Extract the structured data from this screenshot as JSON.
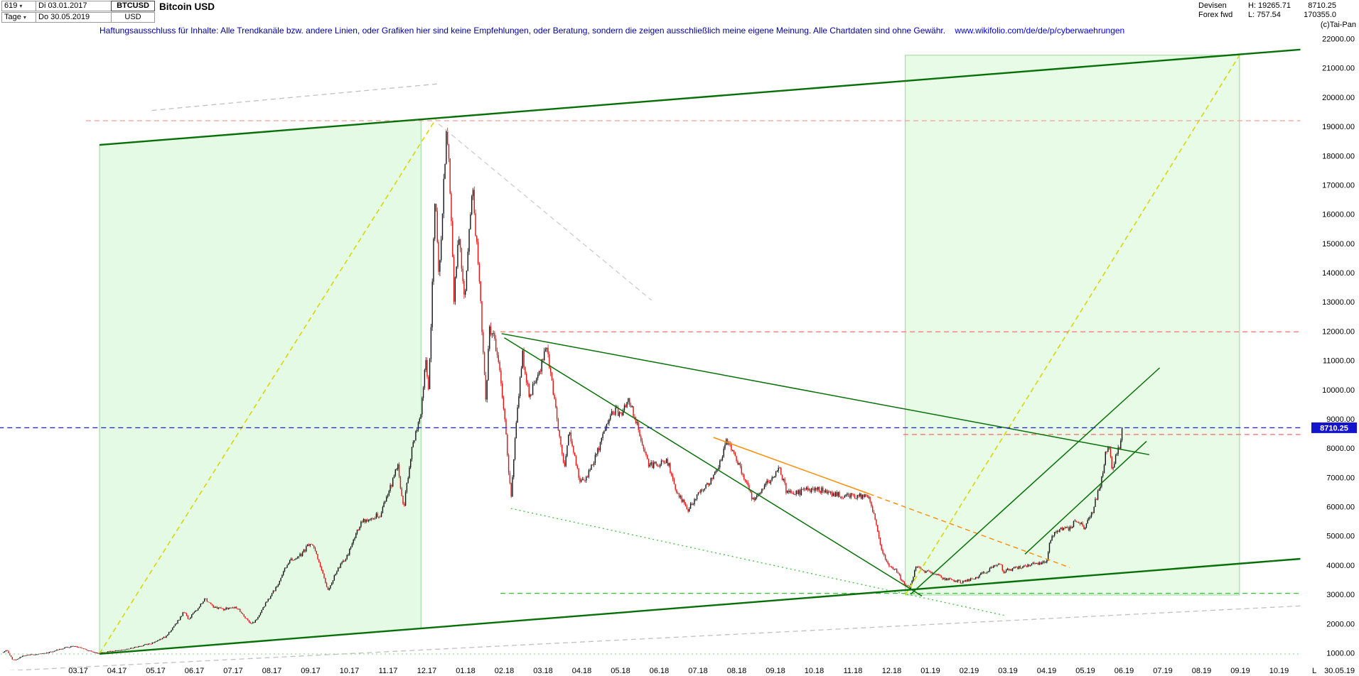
{
  "header": {
    "left": {
      "chart_number": "619",
      "date_from": "Di 03.01.2017",
      "symbol": "BTCUSD",
      "period": "Tage",
      "date_to": "Do 30.05.2019",
      "currency": "USD",
      "title": "Bitcoin USD"
    },
    "right": {
      "market_line1": "Devisen",
      "high": "H: 19265.71",
      "last": "8710.25",
      "market_line2": "Forex fwd",
      "low": "L: 757.54",
      "volume": "170355.0",
      "copyright": "(c)Tai-Pan"
    }
  },
  "disclaimer": {
    "text": "Haftungsausschluss für Inhalte: Alle Trendkanäle bzw. andere Linien, oder Grafiken hier sind keine Empfehlungen, oder Beratung, sondern die zeigen ausschließlich meine eigene Meinung. Alle Chartdaten sind ohne Gewähr.",
    "url": "www.wikifolio.com/de/de/p/cyberwaehrungen"
  },
  "colors": {
    "current_price_bg": "#1414cc",
    "candle_up": "#161616",
    "candle_down": "#e01212",
    "channel_green": "#067006",
    "warning_yellow": "#d8d800",
    "resistance_red": "#ff6666",
    "orange_trend": "#ff8c00"
  },
  "axis": {
    "price_ticks": [
      "22000.00",
      "21000.00",
      "20000.00",
      "19000.00",
      "18000.00",
      "17000.00",
      "16000.00",
      "15000.00",
      "14000.00",
      "13000.00",
      "12000.00",
      "11000.00",
      "10000.00",
      "9000.00",
      "8000.00",
      "7000.00",
      "6000.00",
      "5000.00",
      "4000.00",
      "3000.00",
      "2000.00",
      "1000.00"
    ],
    "date_labels": [
      "03.17",
      "04.17",
      "05.17",
      "06.17",
      "07.17",
      "08.17",
      "09.17",
      "10.17",
      "11.17",
      "12.17",
      "01.18",
      "02.18",
      "03.18",
      "04.18",
      "05.18",
      "06.18",
      "07.18",
      "08.18",
      "09.18",
      "10.18",
      "11.18",
      "12.18",
      "01.19",
      "02.19",
      "03.19",
      "04.19",
      "05.19",
      "06.19",
      "07.19",
      "08.19",
      "09.19",
      "10.19"
    ],
    "last_marker": "L",
    "last_date": "30.05.19",
    "current_price": "8710.25"
  },
  "chart_data": {
    "type": "candlestick",
    "title": "Bitcoin USD",
    "period": "daily (Tage)",
    "xlabel": "",
    "ylabel": "",
    "x_months_origin_label": "03.17",
    "x_range_months": [
      -2.05,
      31.55
    ],
    "ylim": [
      500,
      22400
    ],
    "y_tick_step": 1000,
    "last_close": 8710.25,
    "period_high": 19265.71,
    "period_low": 757.54,
    "colors": {
      "up": "#161616",
      "down": "#e01212"
    },
    "price_anchors": [
      [
        -1.93,
        1020
      ],
      [
        -1.85,
        1125
      ],
      [
        -1.7,
        800
      ],
      [
        -1.62,
        762
      ],
      [
        -1.45,
        905
      ],
      [
        -1.15,
        965
      ],
      [
        -0.8,
        1010
      ],
      [
        -0.38,
        1175
      ],
      [
        -0.1,
        1255
      ],
      [
        0.12,
        1150
      ],
      [
        0.5,
        1000
      ],
      [
        0.8,
        1060
      ],
      [
        1.05,
        1090
      ],
      [
        1.5,
        1215
      ],
      [
        1.9,
        1345
      ],
      [
        2.25,
        1560
      ],
      [
        2.55,
        2060
      ],
      [
        2.73,
        2420
      ],
      [
        2.85,
        2170
      ],
      [
        3.05,
        2480
      ],
      [
        3.28,
        2870
      ],
      [
        3.5,
        2560
      ],
      [
        3.75,
        2510
      ],
      [
        4.1,
        2570
      ],
      [
        4.45,
        1990
      ],
      [
        4.58,
        2120
      ],
      [
        4.85,
        2740
      ],
      [
        5.1,
        3240
      ],
      [
        5.45,
        4160
      ],
      [
        5.75,
        4370
      ],
      [
        6.0,
        4790
      ],
      [
        6.2,
        4230
      ],
      [
        6.45,
        3170
      ],
      [
        6.7,
        3870
      ],
      [
        6.95,
        4350
      ],
      [
        7.3,
        5470
      ],
      [
        7.55,
        5630
      ],
      [
        7.8,
        5750
      ],
      [
        8.0,
        6450
      ],
      [
        8.25,
        7430
      ],
      [
        8.4,
        5920
      ],
      [
        8.62,
        8080
      ],
      [
        8.85,
        9300
      ],
      [
        8.97,
        11150
      ],
      [
        9.05,
        9950
      ],
      [
        9.22,
        16900
      ],
      [
        9.32,
        13800
      ],
      [
        9.42,
        16700
      ],
      [
        9.52,
        19150
      ],
      [
        9.63,
        15800
      ],
      [
        9.7,
        13100
      ],
      [
        9.82,
        15300
      ],
      [
        9.95,
        13300
      ],
      [
        10.0,
        13600
      ],
      [
        10.18,
        16900
      ],
      [
        10.35,
        13800
      ],
      [
        10.53,
        9600
      ],
      [
        10.62,
        12250
      ],
      [
        10.85,
        11100
      ],
      [
        11.0,
        9150
      ],
      [
        11.17,
        6300
      ],
      [
        11.35,
        9600
      ],
      [
        11.47,
        11200
      ],
      [
        11.65,
        9800
      ],
      [
        11.83,
        10350
      ],
      [
        12.1,
        11480
      ],
      [
        12.35,
        9100
      ],
      [
        12.55,
        7350
      ],
      [
        12.68,
        8650
      ],
      [
        12.95,
        6850
      ],
      [
        13.15,
        7080
      ],
      [
        13.45,
        8050
      ],
      [
        13.8,
        9300
      ],
      [
        14.05,
        9220
      ],
      [
        14.2,
        9750
      ],
      [
        14.5,
        8460
      ],
      [
        14.75,
        7400
      ],
      [
        14.97,
        7480
      ],
      [
        15.2,
        7620
      ],
      [
        15.45,
        6480
      ],
      [
        15.75,
        5900
      ],
      [
        15.97,
        6380
      ],
      [
        16.2,
        6660
      ],
      [
        16.55,
        7400
      ],
      [
        16.72,
        8280
      ],
      [
        16.95,
        7760
      ],
      [
        17.2,
        7030
      ],
      [
        17.42,
        6220
      ],
      [
        17.58,
        6480
      ],
      [
        17.85,
        6920
      ],
      [
        18.1,
        7320
      ],
      [
        18.3,
        6460
      ],
      [
        18.6,
        6490
      ],
      [
        18.9,
        6610
      ],
      [
        19.2,
        6580
      ],
      [
        19.5,
        6430
      ],
      [
        19.8,
        6390
      ],
      [
        20.1,
        6380
      ],
      [
        20.42,
        6370
      ],
      [
        20.58,
        5550
      ],
      [
        20.75,
        4460
      ],
      [
        20.92,
        4020
      ],
      [
        21.12,
        3850
      ],
      [
        21.32,
        3350
      ],
      [
        21.47,
        3230
      ],
      [
        21.63,
        3990
      ],
      [
        21.82,
        3800
      ],
      [
        22.02,
        3770
      ],
      [
        22.28,
        3590
      ],
      [
        22.62,
        3470
      ],
      [
        22.92,
        3445
      ],
      [
        23.22,
        3620
      ],
      [
        23.55,
        3890
      ],
      [
        23.77,
        4130
      ],
      [
        23.88,
        3810
      ],
      [
        24.12,
        3890
      ],
      [
        24.47,
        3995
      ],
      [
        24.82,
        4085
      ],
      [
        24.99,
        4120
      ],
      [
        25.1,
        4880
      ],
      [
        25.3,
        5230
      ],
      [
        25.57,
        5290
      ],
      [
        25.77,
        5520
      ],
      [
        25.97,
        5300
      ],
      [
        26.17,
        5770
      ],
      [
        26.42,
        6950
      ],
      [
        26.53,
        7920
      ],
      [
        26.62,
        8030
      ],
      [
        26.7,
        7270
      ],
      [
        26.8,
        7910
      ],
      [
        26.89,
        8080
      ],
      [
        26.97,
        8710.25
      ]
    ],
    "overlays": {
      "boxes": [
        {
          "name": "channel-2017-zone",
          "fill": "rgba(170,240,170,0.30)",
          "stroke": "rgba(60,180,60,0.50)",
          "points": [
            [
              0.55,
              18380
            ],
            [
              8.85,
              19250
            ],
            [
              8.85,
              1850
            ],
            [
              0.55,
              980
            ]
          ]
        },
        {
          "name": "channel-2019-zone",
          "fill": "rgba(170,240,170,0.28)",
          "stroke": "rgba(60,180,60,0.50)",
          "points": [
            [
              21.35,
              21450
            ],
            [
              29.98,
              21450
            ],
            [
              29.98,
              2990
            ],
            [
              21.35,
              2990
            ]
          ]
        }
      ],
      "lines": [
        {
          "name": "old-trend-gray-top",
          "color": "#c0c0c0",
          "width": 1.3,
          "dash": "dash",
          "from": [
            1.9,
            19560
          ],
          "to": [
            9.3,
            20470
          ]
        },
        {
          "name": "old-trend-gray-bottom",
          "color": "#c0c0c0",
          "width": 1.3,
          "dash": "dash",
          "from": [
            -2.0,
            390
          ],
          "to": [
            31.55,
            2620
          ]
        },
        {
          "name": "old-trend-gray-peak",
          "color": "#cccccc",
          "width": 1.3,
          "dash": "dash",
          "from": [
            9.3,
            19100
          ],
          "to": [
            14.8,
            13070
          ]
        },
        {
          "name": "support-dotted-descending",
          "color": "#3fbf3f",
          "width": 1.3,
          "dash": "dot",
          "from": [
            11.17,
            5950
          ],
          "to": [
            23.9,
            2300
          ]
        },
        {
          "name": "support-3050",
          "color": "#3fbf3f",
          "width": 1.3,
          "dash": "dash",
          "from": [
            10.9,
            3050
          ],
          "to": [
            31.55,
            3050
          ]
        },
        {
          "name": "support-975",
          "color": "#7fd47f",
          "width": 1,
          "dash": "dot",
          "from": [
            -2.0,
            975
          ],
          "to": [
            31.55,
            975
          ]
        },
        {
          "name": "rally-2017-trend",
          "color": "#d8d800",
          "width": 1.6,
          "dash": "dash",
          "from": [
            0.55,
            990
          ],
          "to": [
            9.24,
            19280
          ]
        },
        {
          "name": "rally-2019-trend",
          "color": "#d8d800",
          "width": 1.6,
          "dash": "dash",
          "from": [
            21.35,
            2995
          ],
          "to": [
            29.98,
            21450
          ]
        },
        {
          "name": "resistance-19200",
          "color": "#ff9999",
          "width": 1.2,
          "dash": "dash",
          "from": [
            0.2,
            19208
          ],
          "to": [
            31.55,
            19208
          ]
        },
        {
          "name": "resistance-12000",
          "color": "#ff6666",
          "width": 1.2,
          "dash": "dash",
          "from": [
            10.9,
            11990
          ],
          "to": [
            31.55,
            11990
          ]
        },
        {
          "name": "resistance-8480",
          "color": "#ff6666",
          "width": 1.2,
          "dash": "dash",
          "from": [
            21.3,
            8480
          ],
          "to": [
            31.55,
            8480
          ]
        },
        {
          "name": "downtrend-orange",
          "color": "#ff8c00",
          "width": 1.5,
          "dash": "solid",
          "from": [
            16.4,
            8380
          ],
          "to": [
            20.42,
            6450
          ]
        },
        {
          "name": "downtrend-orange-extension",
          "color": "#ff8c00",
          "width": 1.4,
          "dash": "dash",
          "from": [
            20.42,
            6450
          ],
          "to": [
            25.6,
            3930
          ]
        },
        {
          "name": "channel-top",
          "color": "#067006",
          "width": 2.4,
          "dash": "solid",
          "from": [
            0.55,
            18380
          ],
          "to": [
            31.55,
            21640
          ]
        },
        {
          "name": "channel-bottom",
          "color": "#067006",
          "width": 2.4,
          "dash": "solid",
          "from": [
            0.55,
            980
          ],
          "to": [
            31.55,
            4230
          ]
        },
        {
          "name": "downtrend-major",
          "color": "#067006",
          "width": 1.5,
          "dash": "solid",
          "from": [
            10.93,
            11930
          ],
          "to": [
            27.65,
            7790
          ]
        },
        {
          "name": "downtrend-steep",
          "color": "#067006",
          "width": 1.5,
          "dash": "solid",
          "from": [
            11.0,
            11790
          ],
          "to": [
            21.78,
            2960
          ]
        },
        {
          "name": "recovery-trend",
          "color": "#067006",
          "width": 1.5,
          "dash": "solid",
          "from": [
            21.49,
            3020
          ],
          "to": [
            27.92,
            10760
          ]
        },
        {
          "name": "rally-2019-support",
          "color": "#067006",
          "width": 1.5,
          "dash": "solid",
          "from": [
            24.44,
            4390
          ],
          "to": [
            27.58,
            8250
          ]
        },
        {
          "name": "current-price-line",
          "color": "#1f1fe0",
          "width": 1.3,
          "dash": "dash",
          "from": [
            -2.05,
            8710.25
          ],
          "to": [
            31.55,
            8710.25
          ]
        }
      ]
    }
  }
}
